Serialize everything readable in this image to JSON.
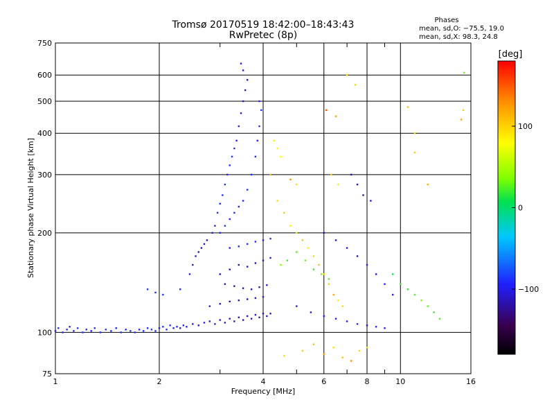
{
  "chart_data": {
    "type": "scatter",
    "title": "Tromsø 20170519 18:42:00–18:43:43",
    "subtitle": "RwPretec (8p)",
    "xlabel": "Frequency [MHz]",
    "ylabel": "Stationary phase Virtual Height [km]",
    "x_scale": "log",
    "y_scale": "log",
    "xlim": [
      1,
      16
    ],
    "ylim": [
      75,
      750
    ],
    "x_ticks": [
      1,
      2,
      4,
      6,
      8,
      10,
      16
    ],
    "x_tick_labels": [
      "1",
      "2",
      "4",
      "6",
      "8",
      "10",
      "16"
    ],
    "x_minor_ticks": [
      3,
      5,
      7,
      9
    ],
    "y_ticks": [
      75,
      100,
      200,
      300,
      400,
      500,
      600,
      750
    ],
    "y_tick_labels": [
      "75",
      "100",
      "200",
      "300",
      "400",
      "500",
      "600",
      "750"
    ],
    "grid": true,
    "legend_title": "Phases",
    "legend_lines": [
      "mean, sd,O:  −75.5, 19.0",
      "mean, sd,X:  98.3, 24.8"
    ],
    "colorbar": {
      "label": "[deg]",
      "range": [
        -180,
        180
      ],
      "ticks": [
        100,
        0,
        -100
      ],
      "tick_labels": [
        "100",
        "0",
        "−100"
      ]
    },
    "series": [
      {
        "values": [
          [
            1.0,
            101,
            -95
          ],
          [
            1.02,
            103,
            -90
          ],
          [
            1.05,
            100,
            -92
          ],
          [
            1.08,
            102,
            -88
          ],
          [
            1.1,
            104,
            -94
          ],
          [
            1.13,
            101,
            -90
          ],
          [
            1.16,
            103,
            -86
          ],
          [
            1.2,
            100,
            -92
          ],
          [
            1.23,
            102,
            -90
          ],
          [
            1.27,
            101,
            -95
          ],
          [
            1.3,
            103,
            -88
          ],
          [
            1.35,
            100,
            -92
          ],
          [
            1.4,
            102,
            -86
          ],
          [
            1.45,
            101,
            -90
          ],
          [
            1.5,
            103,
            -94
          ],
          [
            1.55,
            100,
            -88
          ],
          [
            1.6,
            102,
            -92
          ],
          [
            1.65,
            101,
            -86
          ],
          [
            1.7,
            100,
            -90
          ],
          [
            1.75,
            102,
            -94
          ],
          [
            1.8,
            101,
            -88
          ],
          [
            1.85,
            103,
            -92
          ],
          [
            1.9,
            102,
            -86
          ],
          [
            1.95,
            101,
            -90
          ],
          [
            2.0,
            103,
            -94
          ],
          [
            2.05,
            104,
            -88
          ],
          [
            2.1,
            102,
            -92
          ],
          [
            2.15,
            105,
            -86
          ],
          [
            2.2,
            103,
            -100
          ],
          [
            2.25,
            104,
            -95
          ],
          [
            2.3,
            103,
            -110
          ],
          [
            2.35,
            105,
            -98
          ],
          [
            2.4,
            104,
            -105
          ],
          [
            2.5,
            106,
            -100
          ],
          [
            2.6,
            105,
            -108
          ],
          [
            2.7,
            107,
            -95
          ],
          [
            2.8,
            108,
            -112
          ],
          [
            2.9,
            106,
            -100
          ],
          [
            3.0,
            109,
            -115
          ],
          [
            3.1,
            107,
            -105
          ],
          [
            3.2,
            110,
            -110
          ],
          [
            3.3,
            108,
            -118
          ],
          [
            3.4,
            111,
            -112
          ],
          [
            3.5,
            109,
            -120
          ],
          [
            3.6,
            112,
            -108
          ],
          [
            3.7,
            110,
            -115
          ],
          [
            3.8,
            113,
            -110
          ],
          [
            3.9,
            111,
            -118
          ],
          [
            4.0,
            114,
            -112
          ],
          [
            4.1,
            112,
            -105
          ],
          [
            4.2,
            114,
            -110
          ],
          [
            1.85,
            135,
            -85
          ],
          [
            1.95,
            132,
            -90
          ],
          [
            2.05,
            130,
            -88
          ],
          [
            2.3,
            135,
            -92
          ],
          [
            2.45,
            150,
            -100
          ],
          [
            2.5,
            160,
            -105
          ],
          [
            2.55,
            170,
            -110
          ],
          [
            2.6,
            175,
            -115
          ],
          [
            2.65,
            180,
            -108
          ],
          [
            2.7,
            185,
            -112
          ],
          [
            2.75,
            190,
            -118
          ],
          [
            2.85,
            200,
            -100
          ],
          [
            2.9,
            210,
            -95
          ],
          [
            2.95,
            230,
            -88
          ],
          [
            3.0,
            245,
            -92
          ],
          [
            3.05,
            260,
            -90
          ],
          [
            3.1,
            280,
            -86
          ],
          [
            3.15,
            300,
            -94
          ],
          [
            3.2,
            320,
            -90
          ],
          [
            3.25,
            340,
            -88
          ],
          [
            3.3,
            360,
            -92
          ],
          [
            3.35,
            380,
            -95
          ],
          [
            3.4,
            420,
            -100
          ],
          [
            3.45,
            460,
            -105
          ],
          [
            3.5,
            500,
            -110
          ],
          [
            3.55,
            540,
            -108
          ],
          [
            3.6,
            580,
            -112
          ],
          [
            3.45,
            650,
            -105
          ],
          [
            3.5,
            620,
            -110
          ],
          [
            3.0,
            200,
            -92
          ],
          [
            3.1,
            210,
            -88
          ],
          [
            3.2,
            220,
            -95
          ],
          [
            3.3,
            230,
            -90
          ],
          [
            3.4,
            240,
            -100
          ],
          [
            3.5,
            250,
            -94
          ],
          [
            3.6,
            270,
            -90
          ],
          [
            3.7,
            300,
            -88
          ],
          [
            3.8,
            340,
            -92
          ],
          [
            3.85,
            380,
            -95
          ],
          [
            3.9,
            420,
            -90
          ],
          [
            3.95,
            470,
            -88
          ],
          [
            3.9,
            500,
            -92
          ],
          [
            3.0,
            150,
            -110
          ],
          [
            3.2,
            155,
            -115
          ],
          [
            3.4,
            160,
            -120
          ],
          [
            3.6,
            158,
            -112
          ],
          [
            3.8,
            162,
            -118
          ],
          [
            4.0,
            165,
            -110
          ],
          [
            4.2,
            168,
            -105
          ],
          [
            3.1,
            140,
            -115
          ],
          [
            3.3,
            138,
            -120
          ],
          [
            3.5,
            136,
            -125
          ],
          [
            3.7,
            135,
            -118
          ],
          [
            3.9,
            137,
            -112
          ],
          [
            4.1,
            139,
            -108
          ],
          [
            2.8,
            120,
            -110
          ],
          [
            3.0,
            122,
            -115
          ],
          [
            3.2,
            124,
            -120
          ],
          [
            3.4,
            125,
            -112
          ],
          [
            3.6,
            126,
            -118
          ],
          [
            3.8,
            127,
            -110
          ],
          [
            4.0,
            128,
            -105
          ],
          [
            3.2,
            180,
            -95
          ],
          [
            3.4,
            182,
            -90
          ],
          [
            3.6,
            185,
            -88
          ],
          [
            3.8,
            188,
            -92
          ],
          [
            4.0,
            190,
            -95
          ],
          [
            4.2,
            192,
            -90
          ],
          [
            4.3,
            380,
            90
          ],
          [
            4.4,
            360,
            85
          ],
          [
            4.5,
            340,
            80
          ],
          [
            4.2,
            300,
            110
          ],
          [
            4.4,
            250,
            95
          ],
          [
            4.6,
            230,
            100
          ],
          [
            4.8,
            210,
            85
          ],
          [
            5.0,
            200,
            90
          ],
          [
            5.2,
            190,
            105
          ],
          [
            5.4,
            180,
            88
          ],
          [
            5.6,
            170,
            95
          ],
          [
            5.8,
            160,
            110
          ],
          [
            6.0,
            150,
            92
          ],
          [
            6.2,
            140,
            100
          ],
          [
            6.4,
            130,
            120
          ],
          [
            6.6,
            125,
            85
          ],
          [
            6.8,
            120,
            95
          ],
          [
            5.0,
            175,
            25
          ],
          [
            5.3,
            165,
            30
          ],
          [
            5.6,
            155,
            20
          ],
          [
            5.9,
            150,
            35
          ],
          [
            6.2,
            145,
            28
          ],
          [
            4.5,
            160,
            40
          ],
          [
            4.7,
            165,
            20
          ],
          [
            5.0,
            120,
            -100
          ],
          [
            5.5,
            115,
            -110
          ],
          [
            6.0,
            112,
            -95
          ],
          [
            6.5,
            110,
            -105
          ],
          [
            7.0,
            108,
            -100
          ],
          [
            7.5,
            106,
            -90
          ],
          [
            8.0,
            105,
            -110
          ],
          [
            8.5,
            104,
            -95
          ],
          [
            9.0,
            103,
            -100
          ],
          [
            6.0,
            200,
            -120
          ],
          [
            6.5,
            190,
            -110
          ],
          [
            7.0,
            180,
            -105
          ],
          [
            7.5,
            170,
            -115
          ],
          [
            8.0,
            160,
            -100
          ],
          [
            8.5,
            150,
            -110
          ],
          [
            9.0,
            140,
            -95
          ],
          [
            9.5,
            130,
            -105
          ],
          [
            7.2,
            300,
            -120
          ],
          [
            7.5,
            280,
            -110
          ],
          [
            7.8,
            260,
            -115
          ],
          [
            8.2,
            250,
            -105
          ],
          [
            6.1,
            470,
            150
          ],
          [
            6.5,
            450,
            120
          ],
          [
            7.0,
            600,
            95
          ],
          [
            7.4,
            560,
            100
          ],
          [
            10.5,
            480,
            110
          ],
          [
            11.0,
            400,
            95
          ],
          [
            15.0,
            440,
            120
          ],
          [
            15.2,
            470,
            100
          ],
          [
            15.3,
            610,
            30
          ],
          [
            9.5,
            150,
            10
          ],
          [
            10.0,
            140,
            20
          ],
          [
            10.5,
            135,
            15
          ],
          [
            11.0,
            130,
            25
          ],
          [
            11.5,
            125,
            35
          ],
          [
            12.0,
            120,
            30
          ],
          [
            12.5,
            115,
            20
          ],
          [
            13.0,
            110,
            25
          ],
          [
            4.6,
            85,
            95
          ],
          [
            5.2,
            88,
            100
          ],
          [
            5.6,
            92,
            110
          ],
          [
            6.0,
            86,
            120
          ],
          [
            6.4,
            90,
            95
          ],
          [
            6.8,
            84,
            105
          ],
          [
            7.2,
            82,
            130
          ],
          [
            7.6,
            88,
            95
          ],
          [
            8.0,
            90,
            100
          ],
          [
            12.0,
            280,
            115
          ],
          [
            11.0,
            350,
            100
          ],
          [
            5.0,
            280,
            95
          ],
          [
            4.8,
            290,
            130
          ],
          [
            6.3,
            300,
            100
          ],
          [
            6.6,
            280,
            85
          ]
        ]
      }
    ]
  }
}
